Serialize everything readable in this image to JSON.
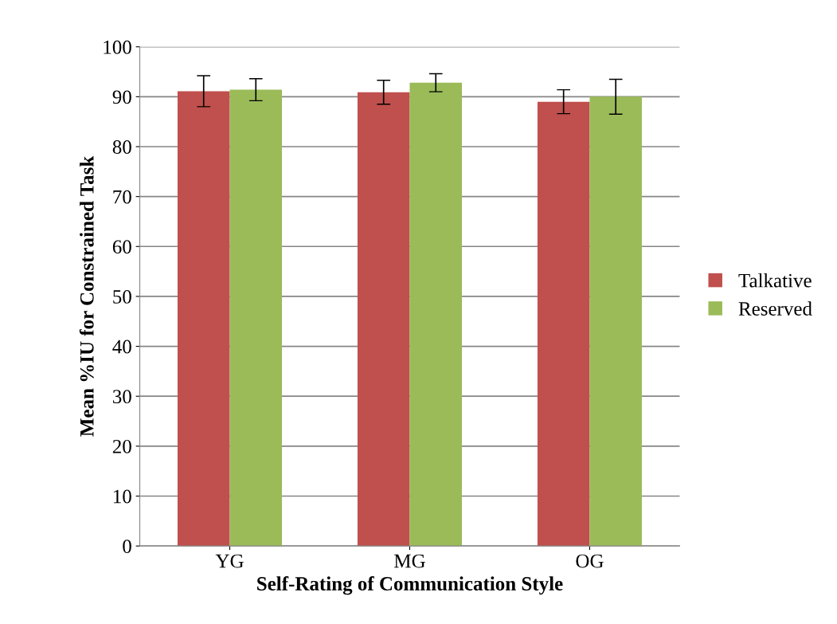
{
  "chart_data": {
    "type": "bar",
    "xlabel": "Self-Rating of Communication Style",
    "ylabel": "Mean %IU for Constrained Task",
    "categories": [
      "YG",
      "MG",
      "OG"
    ],
    "series": [
      {
        "name": "Talkative",
        "color": "#c0504d",
        "values": [
          91.1,
          90.9,
          89.0
        ],
        "errors": [
          3.1,
          2.4,
          2.4
        ]
      },
      {
        "name": "Reserved",
        "color": "#9bbb59",
        "values": [
          91.4,
          92.8,
          90.0
        ],
        "errors": [
          2.2,
          1.8,
          3.5
        ]
      }
    ],
    "ylim": [
      0,
      100
    ],
    "yticks": [
      0,
      10,
      20,
      30,
      40,
      50,
      60,
      70,
      80,
      90,
      100
    ],
    "grid": "y",
    "legend": "right"
  }
}
